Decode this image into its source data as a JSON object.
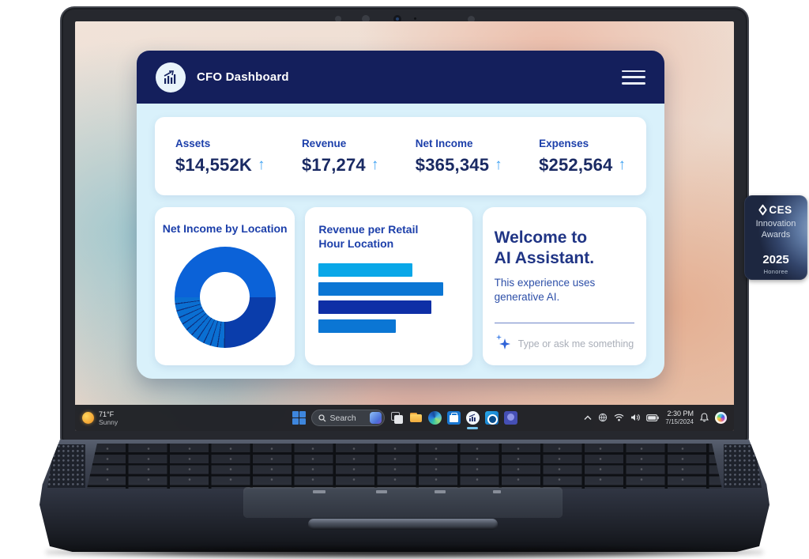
{
  "ui": {
    "arrow_up": "↑"
  },
  "app": {
    "title": "CFO Dashboard",
    "stats": [
      {
        "label": "Assets",
        "value": "$14,552K"
      },
      {
        "label": "Revenue",
        "value": "$17,274"
      },
      {
        "label": "Net Income",
        "value": "$365,345"
      },
      {
        "label": "Expenses",
        "value": "$252,564"
      }
    ],
    "cards": {
      "donut_title": "Net Income by Location",
      "bars_title": "Revenue per Retail Hour Location",
      "assistant": {
        "title_line1": "Welcome to",
        "title_line2": "AI Assistant.",
        "subtitle": "This experience uses generative AI.",
        "input_placeholder": "Type or ask me something"
      }
    }
  },
  "chart_data": [
    {
      "type": "pie",
      "subtype": "donut",
      "title": "Net Income by Location",
      "legend": "none",
      "start_angle_deg": 270,
      "separator_color": "#0d2f7e",
      "segments": [
        {
          "name": "location-1",
          "value": 50,
          "color": "#0b62d8"
        },
        {
          "name": "location-2",
          "value": 25,
          "color": "#0a3dab"
        },
        {
          "name": "location-3",
          "value": 2.27,
          "color": "#0a6fd2",
          "sep": true
        },
        {
          "name": "location-4",
          "value": 2.27,
          "color": "#0a6fd2",
          "sep": true
        },
        {
          "name": "location-5",
          "value": 2.27,
          "color": "#0a6fd2",
          "sep": true
        },
        {
          "name": "location-6",
          "value": 2.27,
          "color": "#0a6fd2",
          "sep": true
        },
        {
          "name": "location-7",
          "value": 2.27,
          "color": "#0a6fd2",
          "sep": true
        },
        {
          "name": "location-8",
          "value": 2.27,
          "color": "#0a6fd2",
          "sep": true
        },
        {
          "name": "location-9",
          "value": 2.27,
          "color": "#0a6fd2",
          "sep": true
        },
        {
          "name": "location-10",
          "value": 2.27,
          "color": "#0a6fd2",
          "sep": true
        },
        {
          "name": "location-11",
          "value": 2.27,
          "color": "#0a6fd2",
          "sep": true
        },
        {
          "name": "location-12",
          "value": 2.27,
          "color": "#0a6fd2",
          "sep": true
        },
        {
          "name": "location-13",
          "value": 2.27,
          "color": "#0a6fd2",
          "sep": true
        }
      ]
    },
    {
      "type": "bar",
      "orientation": "horizontal",
      "title": "Revenue per Retail Hour Location",
      "axes_visible": false,
      "value_scale": "relative",
      "bars": [
        {
          "name": "hour-1",
          "value": 75,
          "color": "#09a7e8"
        },
        {
          "name": "hour-2",
          "value": 100,
          "color": "#0b76d4"
        },
        {
          "name": "hour-3",
          "value": 90,
          "color": "#0e2fa6"
        },
        {
          "name": "hour-4",
          "value": 62,
          "color": "#0b76d4"
        }
      ]
    }
  ],
  "taskbar": {
    "weather": {
      "temperature": "71°F",
      "condition": "Sunny"
    },
    "search_placeholder": "Search",
    "clock": {
      "time": "2:30 PM",
      "date": "7/15/2024"
    }
  },
  "badge": {
    "brand": "CES",
    "award_line1": "Innovation",
    "award_line2": "Awards",
    "year": "2025",
    "honoree": "Honoree"
  },
  "colors": {
    "header_navy": "#141f5c",
    "app_bg": "#d9f1fb",
    "label_blue": "#1c3faa",
    "value_navy": "#1a2a63",
    "arrow_blue": "#3fa2f2"
  }
}
